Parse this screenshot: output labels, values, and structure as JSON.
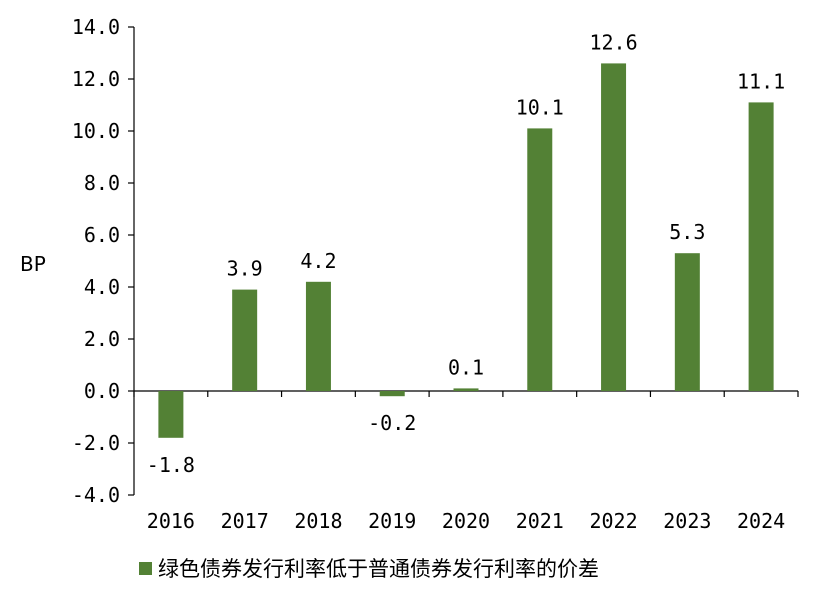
{
  "chart_data": {
    "type": "bar",
    "ylabel": "BP",
    "ylim": [
      -4,
      14
    ],
    "ytick_step": 2,
    "ytick_labels": [
      "-4.0",
      "-2.0",
      "0.0",
      "2.0",
      "4.0",
      "6.0",
      "8.0",
      "10.0",
      "12.0",
      "14.0"
    ],
    "categories": [
      "2016",
      "2017",
      "2018",
      "2019",
      "2020",
      "2021",
      "2022",
      "2023",
      "2024"
    ],
    "series": [
      {
        "name": "绿色债券发行利率低于普通债券发行利率的价差",
        "values": [
          -1.8,
          3.9,
          4.2,
          -0.2,
          0.1,
          10.1,
          12.6,
          5.3,
          11.1
        ],
        "data_labels": [
          "-1.8",
          "3.9",
          "4.2",
          "-0.2",
          "0.1",
          "10.1",
          "12.6",
          "5.3",
          "11.1"
        ],
        "color": "#538135"
      }
    ],
    "legend_position": "bottom-left",
    "grid": false
  }
}
